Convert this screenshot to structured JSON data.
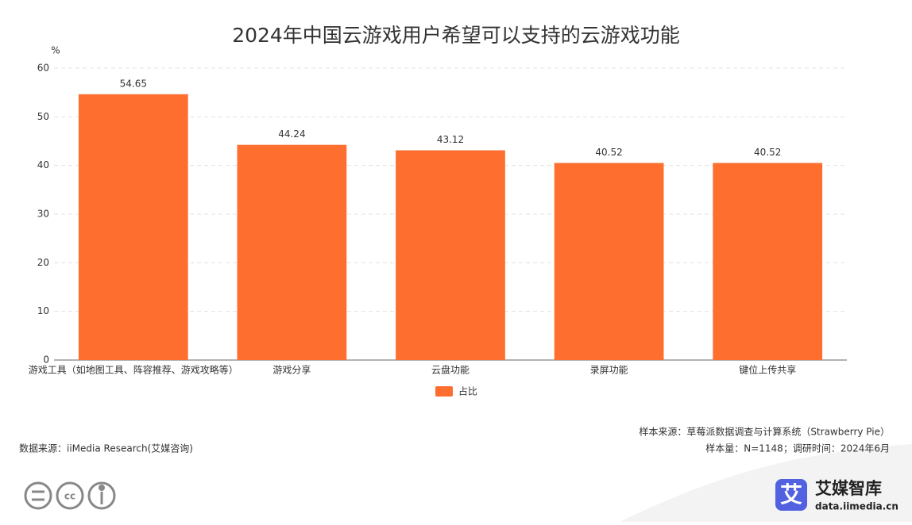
{
  "chart_data": {
    "type": "bar",
    "title": "2024年中国云游戏用户希望可以支持的云游戏功能",
    "y_label": "%",
    "categories": [
      "游戏工具（如地图工具、阵容推荐、游戏攻略等）",
      "游戏分享",
      "云盘功能",
      "录屏功能",
      "键位上传共享"
    ],
    "series": [
      {
        "name": "占比",
        "color": "#fd6e2f",
        "values": [
          54.65,
          44.24,
          43.12,
          40.52,
          40.52
        ]
      }
    ],
    "ylim": [
      0,
      60
    ],
    "yticks": [
      0,
      10,
      20,
      30,
      40,
      50,
      60
    ],
    "grid": true,
    "legend": "bottom"
  },
  "footer": {
    "source": "数据来源：iiMedia Research(艾媒咨询)",
    "sample_source": "样本来源：草莓派数据调查与计算系统（Strawberry Pie）",
    "sample_info": "样本量：N=1148；调研时间：2024年6月",
    "logo_mark": "艾",
    "logo_name": "艾媒智库",
    "logo_url": "data.iimedia.cn"
  }
}
